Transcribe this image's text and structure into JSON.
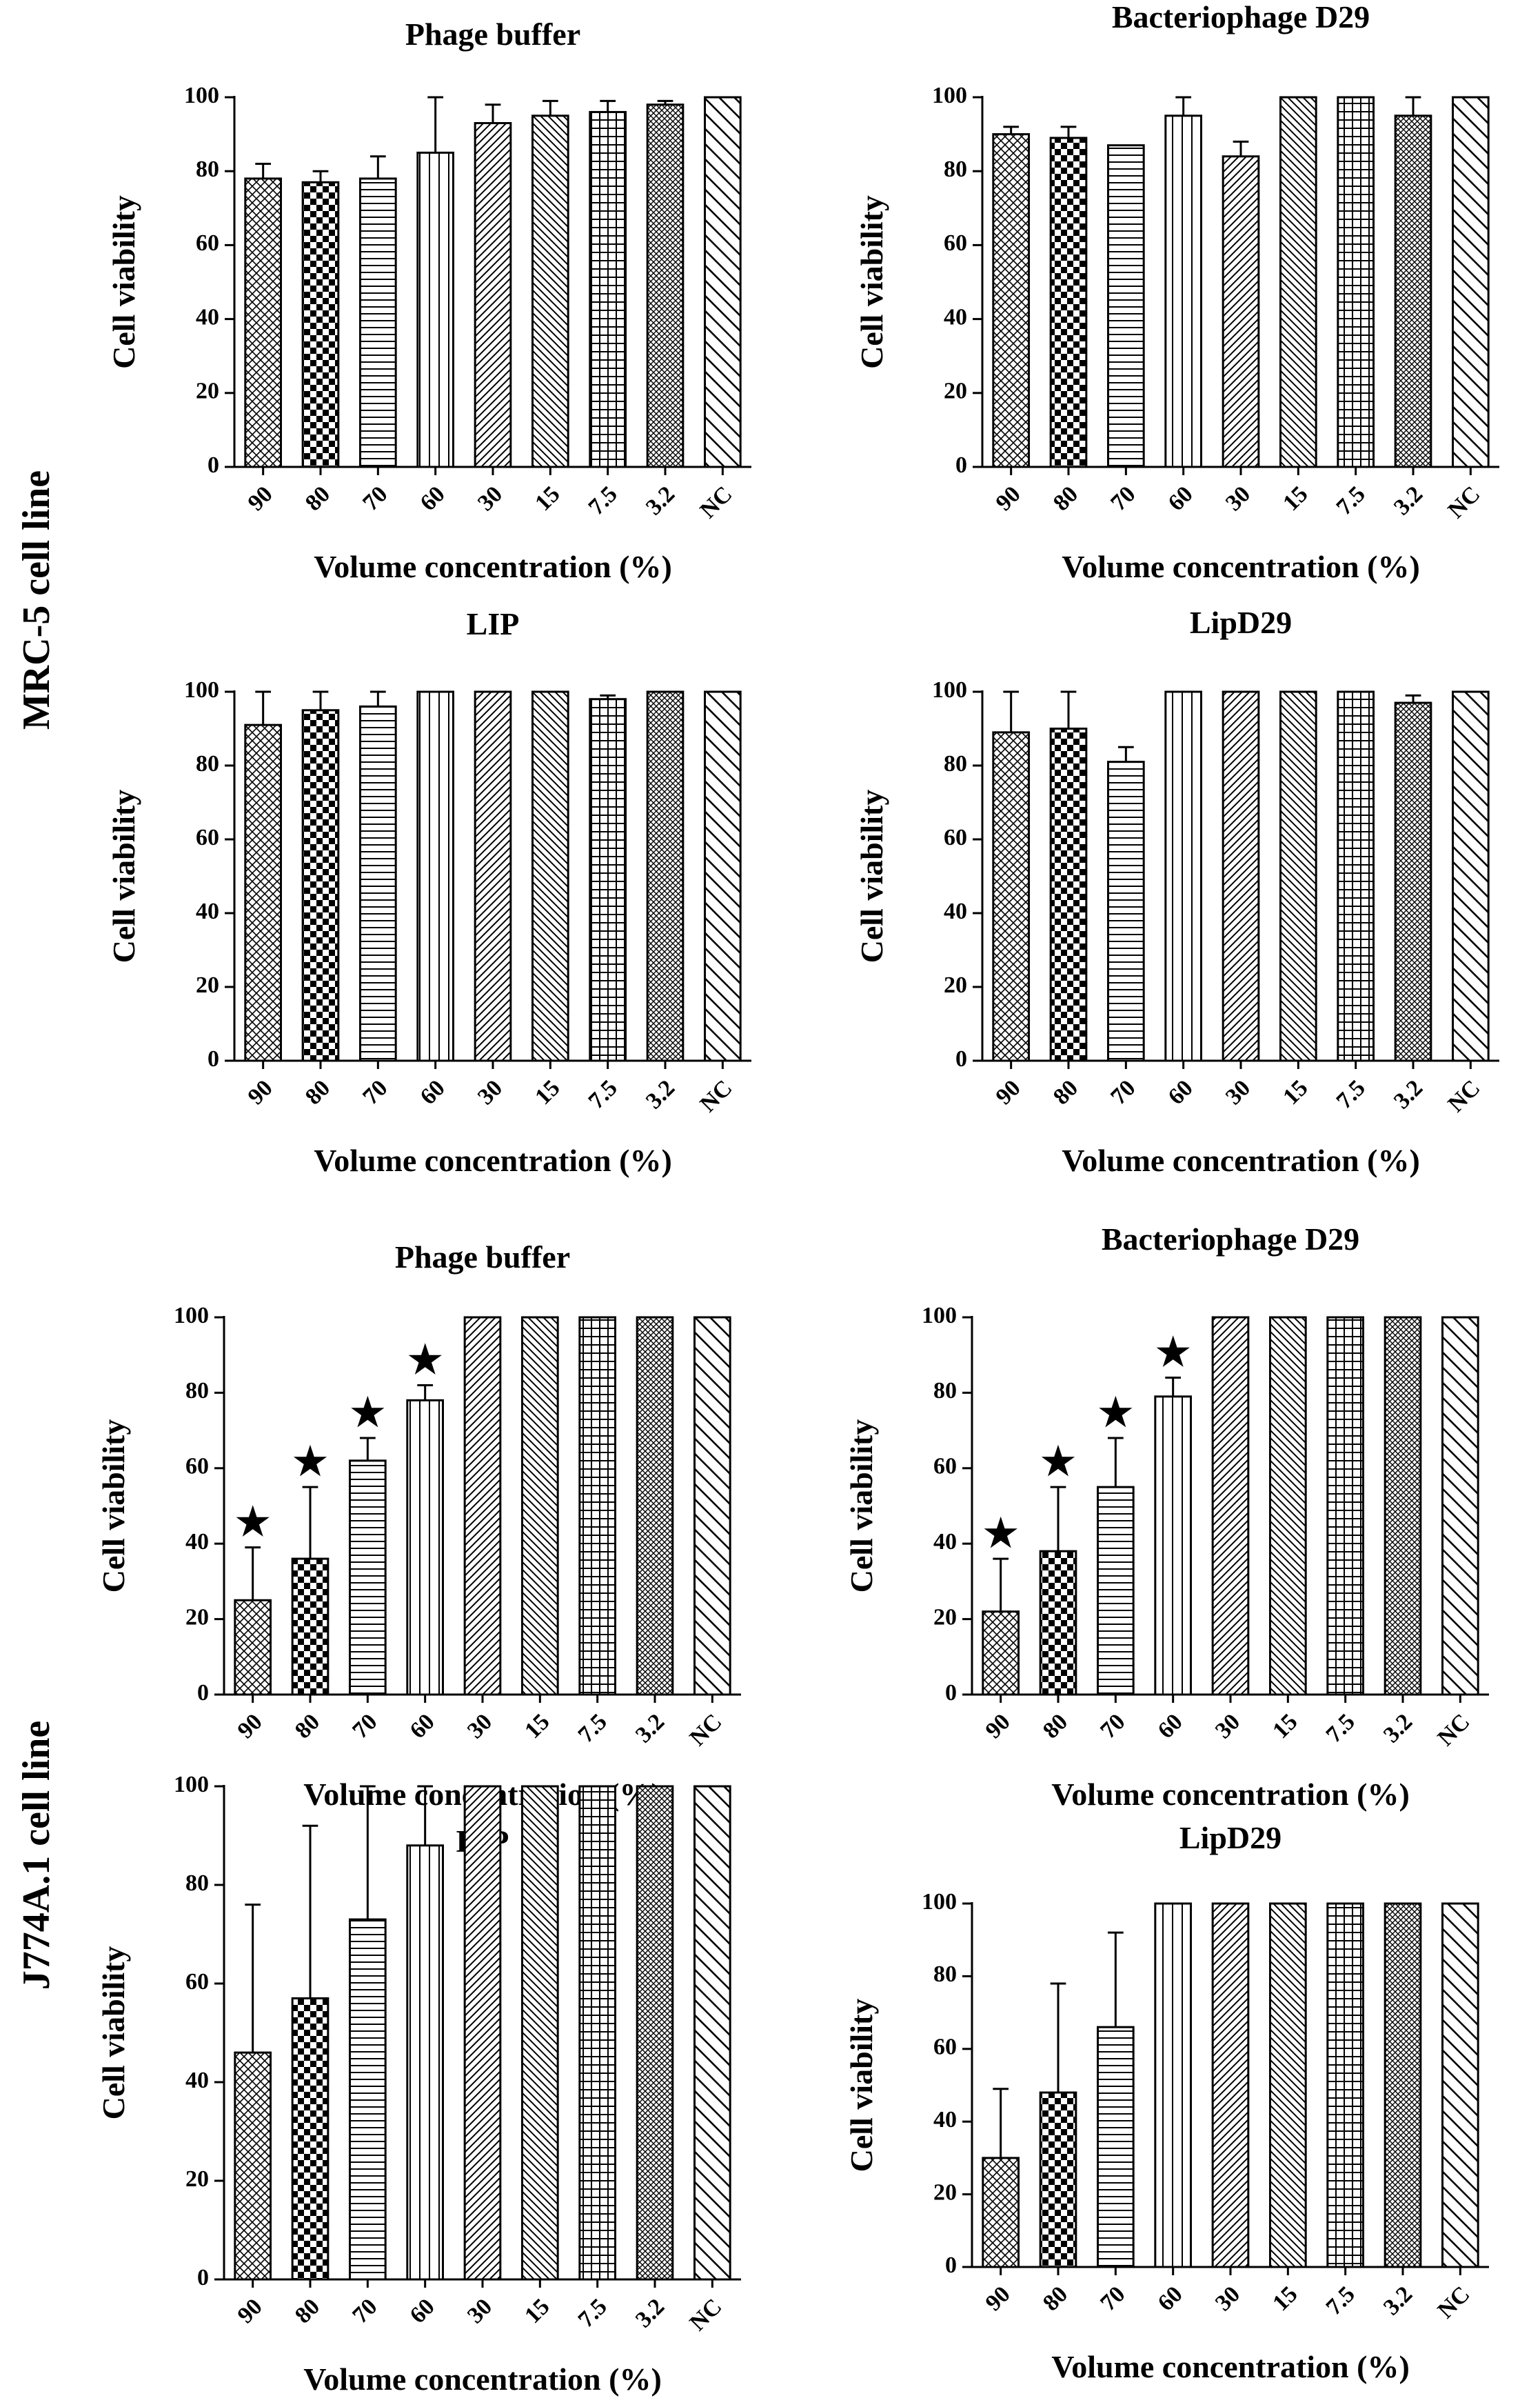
{
  "row_labels": [
    "MRC-5 cell line",
    "J774A.1 cell line"
  ],
  "colors": {
    "ink": "#000000",
    "background": "#ffffff"
  },
  "chart_data": [
    {
      "type": "bar",
      "title": "Phage buffer",
      "row": "MRC-5 cell line",
      "xlabel": "Volume concentration (%)",
      "ylabel": "Cell viability",
      "ylim": [
        0,
        100
      ],
      "yticks": [
        0,
        20,
        40,
        60,
        80,
        100
      ],
      "categories": [
        "90",
        "80",
        "70",
        "60",
        "30",
        "15",
        "7.5",
        "3.2",
        "NC"
      ],
      "values": [
        78,
        77,
        78,
        85,
        93,
        95,
        96,
        98,
        100
      ],
      "error_upper": [
        4,
        3,
        6,
        15,
        5,
        4,
        3,
        1,
        0
      ],
      "significant": [
        false,
        false,
        false,
        false,
        false,
        false,
        false,
        false,
        false
      ],
      "grid": false
    },
    {
      "type": "bar",
      "title": "Bacteriophage D29",
      "row": "MRC-5 cell line",
      "xlabel": "Volume concentration (%)",
      "ylabel": "Cell viability",
      "ylim": [
        0,
        100
      ],
      "yticks": [
        0,
        20,
        40,
        60,
        80,
        100
      ],
      "categories": [
        "90",
        "80",
        "70",
        "60",
        "30",
        "15",
        "7.5",
        "3.2",
        "NC"
      ],
      "values": [
        90,
        89,
        87,
        95,
        84,
        100,
        100,
        95,
        100
      ],
      "error_upper": [
        2,
        3,
        0,
        5,
        4,
        0,
        0,
        5,
        0
      ],
      "significant": [
        false,
        false,
        false,
        false,
        false,
        false,
        false,
        false,
        false
      ],
      "grid": false
    },
    {
      "type": "bar",
      "title": "LIP",
      "row": "MRC-5 cell line",
      "xlabel": "Volume concentration (%)",
      "ylabel": "Cell viability",
      "ylim": [
        0,
        100
      ],
      "yticks": [
        0,
        20,
        40,
        60,
        80,
        100
      ],
      "categories": [
        "90",
        "80",
        "70",
        "60",
        "30",
        "15",
        "7.5",
        "3.2",
        "NC"
      ],
      "values": [
        91,
        95,
        96,
        100,
        100,
        100,
        98,
        100,
        100
      ],
      "error_upper": [
        9,
        5,
        4,
        0,
        0,
        0,
        1,
        0,
        0
      ],
      "significant": [
        false,
        false,
        false,
        false,
        false,
        false,
        false,
        false,
        false
      ],
      "grid": false
    },
    {
      "type": "bar",
      "title": "LipD29",
      "row": "MRC-5 cell line",
      "xlabel": "Volume concentration (%)",
      "ylabel": "Cell viability",
      "ylim": [
        0,
        100
      ],
      "yticks": [
        0,
        20,
        40,
        60,
        80,
        100
      ],
      "categories": [
        "90",
        "80",
        "70",
        "60",
        "30",
        "15",
        "7.5",
        "3.2",
        "NC"
      ],
      "values": [
        89,
        90,
        81,
        100,
        100,
        100,
        100,
        97,
        100
      ],
      "error_upper": [
        11,
        10,
        4,
        0,
        0,
        0,
        0,
        2,
        0
      ],
      "significant": [
        false,
        false,
        false,
        false,
        false,
        false,
        false,
        false,
        false
      ],
      "grid": false
    },
    {
      "type": "bar",
      "title": "Phage buffer",
      "row": "J774A.1 cell line",
      "xlabel": "Volume concentration (%)",
      "ylabel": "Cell viability",
      "ylim": [
        0,
        100
      ],
      "yticks": [
        0,
        20,
        40,
        60,
        80,
        100
      ],
      "categories": [
        "90",
        "80",
        "70",
        "60",
        "30",
        "15",
        "7.5",
        "3.2",
        "NC"
      ],
      "values": [
        25,
        36,
        62,
        78,
        100,
        100,
        100,
        100,
        100
      ],
      "error_upper": [
        14,
        19,
        6,
        4,
        0,
        0,
        0,
        0,
        0
      ],
      "significant": [
        true,
        true,
        true,
        true,
        false,
        false,
        false,
        false,
        false
      ],
      "significance_mark": "★",
      "grid": false
    },
    {
      "type": "bar",
      "title": "Bacteriophage D29",
      "row": "J774A.1 cell line",
      "xlabel": "Volume concentration (%)",
      "ylabel": "Cell viability",
      "ylim": [
        0,
        100
      ],
      "yticks": [
        0,
        20,
        40,
        60,
        80,
        100
      ],
      "categories": [
        "90",
        "80",
        "70",
        "60",
        "30",
        "15",
        "7.5",
        "3.2",
        "NC"
      ],
      "values": [
        22,
        38,
        55,
        79,
        100,
        100,
        100,
        100,
        100
      ],
      "error_upper": [
        14,
        17,
        13,
        5,
        0,
        0,
        0,
        0,
        0
      ],
      "significant": [
        true,
        true,
        true,
        true,
        false,
        false,
        false,
        false,
        false
      ],
      "significance_mark": "★",
      "grid": false
    },
    {
      "type": "bar",
      "title": "LIP",
      "row": "J774A.1 cell line",
      "xlabel": "Volume concentration (%)",
      "ylabel": "Cell viability",
      "ylim": [
        0,
        100
      ],
      "yticks": [
        0,
        20,
        40,
        60,
        80,
        100
      ],
      "categories": [
        "90",
        "80",
        "70",
        "60",
        "30",
        "15",
        "7.5",
        "3.2",
        "NC"
      ],
      "values": [
        46,
        57,
        73,
        88,
        100,
        100,
        100,
        100,
        100
      ],
      "error_upper": [
        30,
        35,
        27,
        12,
        0,
        0,
        0,
        0,
        0
      ],
      "significant": [
        false,
        false,
        false,
        false,
        false,
        false,
        false,
        false,
        false
      ],
      "grid": false
    },
    {
      "type": "bar",
      "title": "LipD29",
      "row": "J774A.1 cell line",
      "xlabel": "Volume concentration (%)",
      "ylabel": "Cell viability",
      "ylim": [
        0,
        100
      ],
      "yticks": [
        0,
        20,
        40,
        60,
        80,
        100
      ],
      "categories": [
        "90",
        "80",
        "70",
        "60",
        "30",
        "15",
        "7.5",
        "3.2",
        "NC"
      ],
      "values": [
        30,
        48,
        66,
        100,
        100,
        100,
        100,
        100,
        100
      ],
      "error_upper": [
        19,
        30,
        26,
        0,
        0,
        0,
        0,
        0,
        0
      ],
      "significant": [
        false,
        false,
        false,
        false,
        false,
        false,
        false,
        false,
        false
      ],
      "grid": false
    }
  ]
}
